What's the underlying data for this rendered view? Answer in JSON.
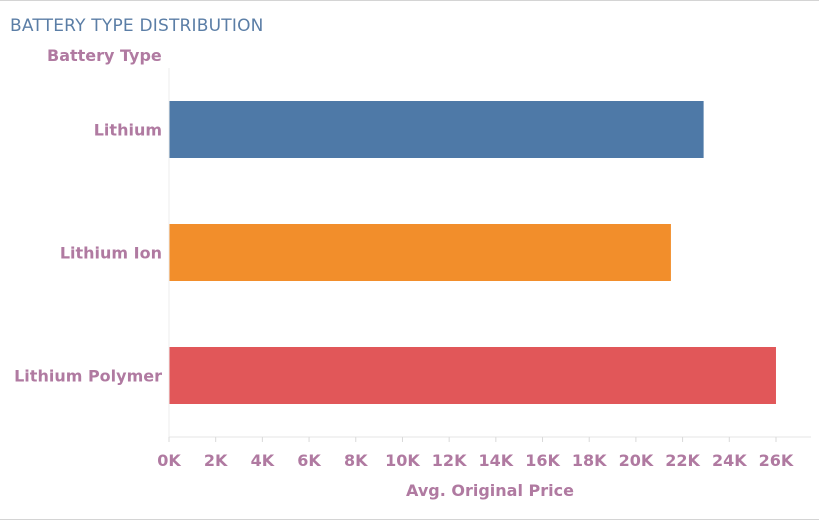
{
  "header": {
    "title": "BATTERY TYPE DISTRIBUTION"
  },
  "chart_data": {
    "type": "bar",
    "orientation": "horizontal",
    "title": "BATTERY TYPE DISTRIBUTION",
    "ylabel": "Battery Type",
    "xlabel": "Avg. Original Price",
    "categories": [
      "Lithium",
      "Lithium Ion",
      "Lithium Polymer"
    ],
    "values": [
      22900,
      21500,
      26000
    ],
    "colors": [
      "#4e79a7",
      "#f28e2b",
      "#e15759"
    ],
    "xlim": [
      0,
      27500
    ],
    "xticks": [
      0,
      2000,
      4000,
      6000,
      8000,
      10000,
      12000,
      14000,
      16000,
      18000,
      20000,
      22000,
      24000,
      26000
    ],
    "xtick_labels": [
      "0K",
      "2K",
      "4K",
      "6K",
      "8K",
      "10K",
      "12K",
      "14K",
      "16K",
      "18K",
      "20K",
      "22K",
      "24K",
      "26K"
    ],
    "grid": false,
    "legend": "none"
  }
}
